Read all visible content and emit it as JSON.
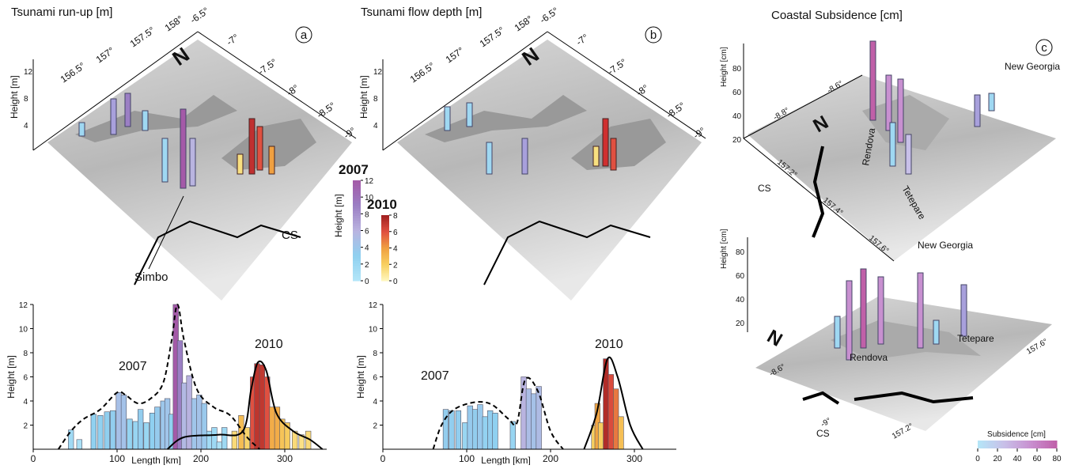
{
  "panels": [
    {
      "label": "a",
      "title": "Tsunami run-up [m]",
      "map": {
        "lon_labels": [
          "156.5°",
          "157°",
          "157.5°",
          "158°"
        ],
        "lat_labels": [
          "-6.5°",
          "-7°",
          "-7.5°",
          "-8°",
          "-8.5°",
          "-9°"
        ],
        "height_axis": "Height [m]",
        "height_ticks": [
          "4",
          "8",
          "12"
        ],
        "north": "N",
        "annotations": [
          "CS",
          "Simbo"
        ]
      }
    },
    {
      "label": "b",
      "title": "Tsunami flow depth [m]",
      "map": {
        "lon_labels": [
          "156.5°",
          "157°",
          "157.5°",
          "158°"
        ],
        "lat_labels": [
          "-6.5°",
          "-7°",
          "-7.5°",
          "-8°",
          "-8.5°",
          "-9°"
        ],
        "height_axis": "Height [m]",
        "height_ticks": [
          "4",
          "8",
          "12"
        ],
        "north": "N"
      }
    },
    {
      "label": "c",
      "title": "Coastal Subsidence [cm]",
      "maps": [
        {
          "height_axis": "Height [cm]",
          "height_ticks": [
            "20",
            "40",
            "60",
            "80"
          ],
          "lat_labels": [
            "-8.6°",
            "-8.8°"
          ],
          "lon_labels": [
            "157.2°",
            "157.4°",
            "157.6°"
          ],
          "north": "N",
          "places": [
            "CS",
            "Rendova",
            "Tetepare",
            "New Georgia"
          ]
        },
        {
          "height_axis": "Height [cm]",
          "height_ticks": [
            "20",
            "40",
            "60",
            "80"
          ],
          "lat_labels": [
            "-8.6°",
            "-9°"
          ],
          "lon_labels": [
            "157.2°",
            "157.6°"
          ],
          "north": "N",
          "places": [
            "CS",
            "Rendova",
            "Tetepare",
            "New Georgia"
          ]
        }
      ],
      "colorbar": {
        "title": "Subsidence [cm]",
        "ticks": [
          0,
          20,
          40,
          60,
          80
        ],
        "colors": [
          "#b4e6f8",
          "#c8c0e8",
          "#c890d0",
          "#c060a8"
        ]
      }
    }
  ],
  "colorbars": [
    {
      "title": "2007",
      "ticks": [
        0,
        2,
        4,
        6,
        8,
        10,
        12
      ],
      "colors": [
        "#b4e6f8",
        "#8fd0f0",
        "#b9b4e0",
        "#9b7fc4",
        "#a45aa8"
      ]
    },
    {
      "title": "2010",
      "ticks": [
        0,
        2,
        4,
        6,
        8
      ],
      "colors": [
        "#fff8c0",
        "#f8d060",
        "#f0a040",
        "#e05040",
        "#a02020"
      ]
    }
  ],
  "colorbar_label": "Height [m]",
  "chart_data": [
    {
      "type": "bar",
      "xlabel": "Length [km]",
      "ylabel": "Height [m]",
      "xlim": [
        0,
        350
      ],
      "ylim": [
        0,
        12
      ],
      "xticks": [
        0,
        100,
        200,
        300
      ],
      "yticks": [
        2,
        4,
        6,
        8,
        10,
        12
      ],
      "series": [
        {
          "name": "2007",
          "x": [
            45,
            55,
            72,
            80,
            88,
            95,
            102,
            108,
            115,
            122,
            128,
            135,
            142,
            148,
            155,
            160,
            165,
            170,
            175,
            180,
            186,
            192,
            198,
            204,
            210,
            216,
            222,
            228
          ],
          "values": [
            1.6,
            0.8,
            2.9,
            2.8,
            3.1,
            3.2,
            4.7,
            4.5,
            2.5,
            2.3,
            3.3,
            2.2,
            3.0,
            3.5,
            4.0,
            4.2,
            2.9,
            12.0,
            9.0,
            5.5,
            6.1,
            4.2,
            4.5,
            3.8,
            1.5,
            1.8,
            0.6,
            1.8
          ]
        },
        {
          "name": "2010",
          "x": [
            240,
            248,
            255,
            262,
            267,
            273,
            279,
            285,
            291,
            297,
            303,
            312,
            320,
            328
          ],
          "values": [
            1.5,
            2.8,
            1.8,
            6.0,
            7.1,
            7.0,
            6.0,
            3.5,
            3.5,
            2.5,
            2.2,
            1.5,
            1.2,
            1.5
          ]
        }
      ],
      "envelopes": [
        {
          "style": "dashed",
          "x": [
            30,
            45,
            60,
            80,
            100,
            110,
            125,
            140,
            155,
            165,
            172,
            180,
            195,
            215,
            235,
            255,
            270
          ],
          "values": [
            0,
            1.5,
            2.5,
            3.3,
            4.7,
            4.5,
            3.8,
            4.2,
            5.5,
            9,
            12,
            9,
            5,
            3.5,
            2.8,
            1,
            0
          ]
        },
        {
          "style": "solid",
          "x": [
            160,
            180,
            220,
            250,
            260,
            268,
            278,
            290,
            310,
            330,
            345
          ],
          "values": [
            0,
            1.0,
            1.2,
            1.5,
            5,
            7.2,
            6.5,
            3,
            1.5,
            0.8,
            0
          ]
        }
      ]
    },
    {
      "type": "bar",
      "xlabel": "Length [km]",
      "ylabel": "Height [m]",
      "xlim": [
        0,
        350
      ],
      "ylim": [
        0,
        12
      ],
      "xticks": [
        0,
        100,
        200,
        300
      ],
      "yticks": [
        2,
        4,
        6,
        8,
        10,
        12
      ],
      "series": [
        {
          "name": "2007",
          "x": [
            75,
            82,
            90,
            98,
            104,
            110,
            116,
            122,
            128,
            134,
            155,
            168,
            174,
            180,
            186
          ],
          "values": [
            3.3,
            3.2,
            3.2,
            2.2,
            3.6,
            3.3,
            3.7,
            2.7,
            3.2,
            3.0,
            2.3,
            6.0,
            5.0,
            4.6,
            5.2
          ]
        },
        {
          "name": "2010",
          "x": [
            252,
            256,
            260,
            266,
            272,
            278,
            284
          ],
          "values": [
            2.0,
            3.8,
            2.2,
            7.5,
            6.2,
            5.0,
            2.7
          ]
        }
      ],
      "envelopes": [
        {
          "style": "dashed",
          "x": [
            60,
            70,
            85,
            110,
            130,
            150,
            160,
            170,
            185,
            200,
            215
          ],
          "values": [
            0,
            2,
            3.3,
            3.9,
            3.7,
            2.5,
            2.2,
            5.8,
            4.8,
            1.5,
            0
          ]
        },
        {
          "style": "solid",
          "x": [
            240,
            255,
            268,
            280,
            295,
            310
          ],
          "values": [
            0,
            3,
            7.5,
            6,
            2,
            0
          ]
        }
      ]
    }
  ]
}
